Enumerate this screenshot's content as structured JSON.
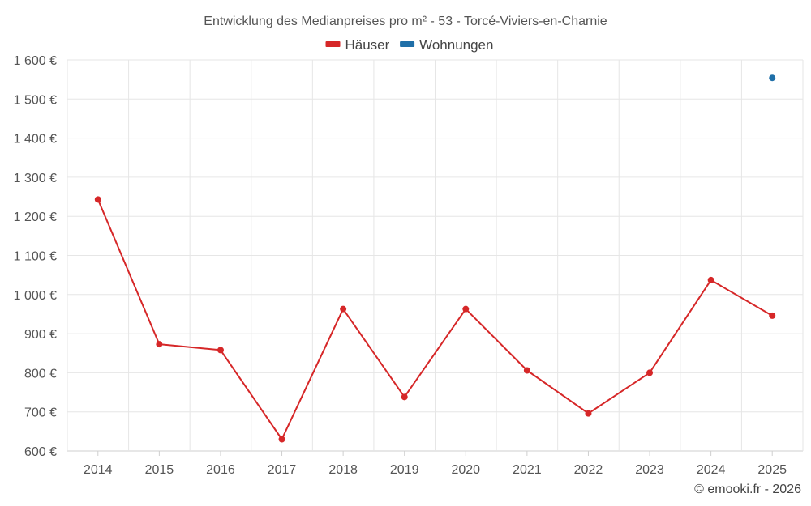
{
  "chart_data": {
    "type": "line",
    "title": "Entwicklung des Medianpreises pro m² - 53 - Torcé-Viviers-en-Charnie",
    "categories": [
      "2014",
      "2015",
      "2016",
      "2017",
      "2018",
      "2019",
      "2020",
      "2021",
      "2022",
      "2023",
      "2024",
      "2025"
    ],
    "ylim": [
      600,
      1600
    ],
    "yticks": [
      600,
      700,
      800,
      900,
      1000,
      1100,
      1200,
      1300,
      1400,
      1500,
      1600
    ],
    "ytick_labels": [
      "600 €",
      "700 €",
      "800 €",
      "900 €",
      "1 000 €",
      "1 100 €",
      "1 200 €",
      "1 300 €",
      "1 400 €",
      "1 500 €",
      "1 600 €"
    ],
    "grid": true,
    "legend_position": "top-center",
    "series": [
      {
        "name": "Häuser",
        "color": "#d62728",
        "values": [
          1243,
          873,
          858,
          630,
          963,
          738,
          963,
          806,
          696,
          800,
          1037,
          946
        ]
      },
      {
        "name": "Wohnungen",
        "color": "#1f6fa8",
        "values": [
          null,
          null,
          null,
          null,
          null,
          null,
          null,
          null,
          null,
          null,
          null,
          1554
        ]
      }
    ]
  },
  "credit": "© emooki.fr - 2026"
}
